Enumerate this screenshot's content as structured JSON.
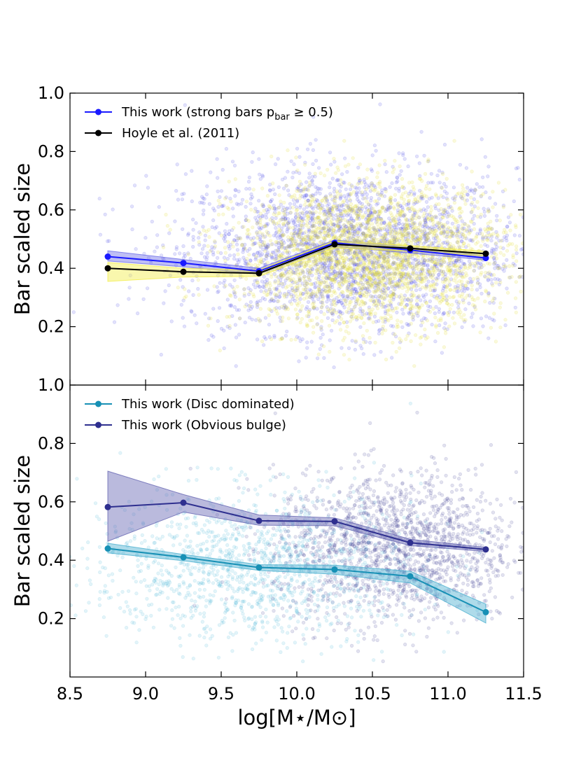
{
  "chart_data": [
    {
      "type": "line",
      "panel": "top",
      "title": "",
      "xlabel": "",
      "ylabel": "Bar scaled size",
      "xlim": [
        8.5,
        11.5
      ],
      "ylim": [
        0.0,
        1.0
      ],
      "yticks": [
        "0.2",
        "0.4",
        "0.6",
        "0.8",
        "1.0"
      ],
      "legend_position": "top-left",
      "series": [
        {
          "name": "This work (strong bars p_bar ≥ 0.5)",
          "legend_main": "This work (strong bars p",
          "legend_sub": "bar",
          "legend_tail": " ≥ 0.5)",
          "color": "#1a1aff",
          "band_color": "#6f6fe8",
          "x": [
            8.75,
            9.25,
            9.75,
            10.25,
            10.75,
            11.25
          ],
          "y": [
            0.44,
            0.418,
            0.39,
            0.487,
            0.462,
            0.435
          ],
          "band_lo": [
            0.425,
            0.405,
            0.38,
            0.475,
            0.452,
            0.428
          ],
          "band_hi": [
            0.46,
            0.43,
            0.4,
            0.497,
            0.472,
            0.442
          ],
          "scatter": {
            "color": "#3a3ae6",
            "opacity": 0.15,
            "count": 2600,
            "x_mean": 10.35,
            "x_sd": 0.55,
            "y_mean": 0.46,
            "y_sd": 0.14
          }
        },
        {
          "name": "Hoyle et al. (2011)",
          "legend_main": "Hoyle et al. (2011)",
          "color": "#000000",
          "band_color": "#f2ee4a",
          "x": [
            8.75,
            9.25,
            9.75,
            10.25,
            10.75,
            11.25
          ],
          "y": [
            0.4,
            0.388,
            0.383,
            0.482,
            0.468,
            0.45
          ],
          "band_lo": [
            0.355,
            0.37,
            0.372,
            0.47,
            0.458,
            0.442
          ],
          "band_hi": [
            0.42,
            0.4,
            0.394,
            0.494,
            0.478,
            0.458
          ],
          "scatter": {
            "color": "#e3dd3a",
            "opacity": 0.18,
            "count": 2600,
            "x_mean": 10.5,
            "x_sd": 0.45,
            "y_mean": 0.44,
            "y_sd": 0.12
          }
        }
      ]
    },
    {
      "type": "line",
      "panel": "bottom",
      "title": "",
      "xlabel": "log[M⋆/M⊙]",
      "ylabel": "Bar scaled size",
      "xlim": [
        8.5,
        11.5
      ],
      "ylim": [
        0.0,
        1.0
      ],
      "xticks": [
        "8.5",
        "9.0",
        "9.5",
        "10.0",
        "10.5",
        "11.0",
        "11.5"
      ],
      "yticks": [
        "0.2",
        "0.4",
        "0.6",
        "0.8",
        "1.0"
      ],
      "legend_position": "top-left",
      "series": [
        {
          "name": "This work (Disc dominated)",
          "legend_main": "This work (Disc dominated)",
          "color": "#1790b5",
          "band_color": "#4bb0d0",
          "x": [
            8.75,
            9.25,
            9.75,
            10.25,
            10.75,
            11.25
          ],
          "y": [
            0.44,
            0.41,
            0.375,
            0.368,
            0.345,
            0.222
          ],
          "band_lo": [
            0.425,
            0.398,
            0.365,
            0.352,
            0.322,
            0.185
          ],
          "band_hi": [
            0.458,
            0.42,
            0.385,
            0.383,
            0.362,
            0.25
          ],
          "scatter": {
            "color": "#45b5d4",
            "opacity": 0.15,
            "count": 1300,
            "x_mean": 9.7,
            "x_sd": 0.55,
            "y_mean": 0.38,
            "y_sd": 0.13
          }
        },
        {
          "name": "This work (Obvious bulge)",
          "legend_main": "This work (Obvious bulge)",
          "color": "#2e2f8f",
          "band_color": "#6767b3",
          "x": [
            8.75,
            9.25,
            9.75,
            10.25,
            10.75,
            11.25
          ],
          "y": [
            0.582,
            0.597,
            0.535,
            0.533,
            0.46,
            0.437
          ],
          "band_lo": [
            0.465,
            0.565,
            0.52,
            0.518,
            0.45,
            0.43
          ],
          "band_hi": [
            0.705,
            0.625,
            0.555,
            0.545,
            0.472,
            0.444
          ],
          "scatter": {
            "color": "#3e3e96",
            "opacity": 0.15,
            "count": 1700,
            "x_mean": 10.65,
            "x_sd": 0.4,
            "y_mean": 0.44,
            "y_sd": 0.13
          }
        }
      ]
    }
  ]
}
